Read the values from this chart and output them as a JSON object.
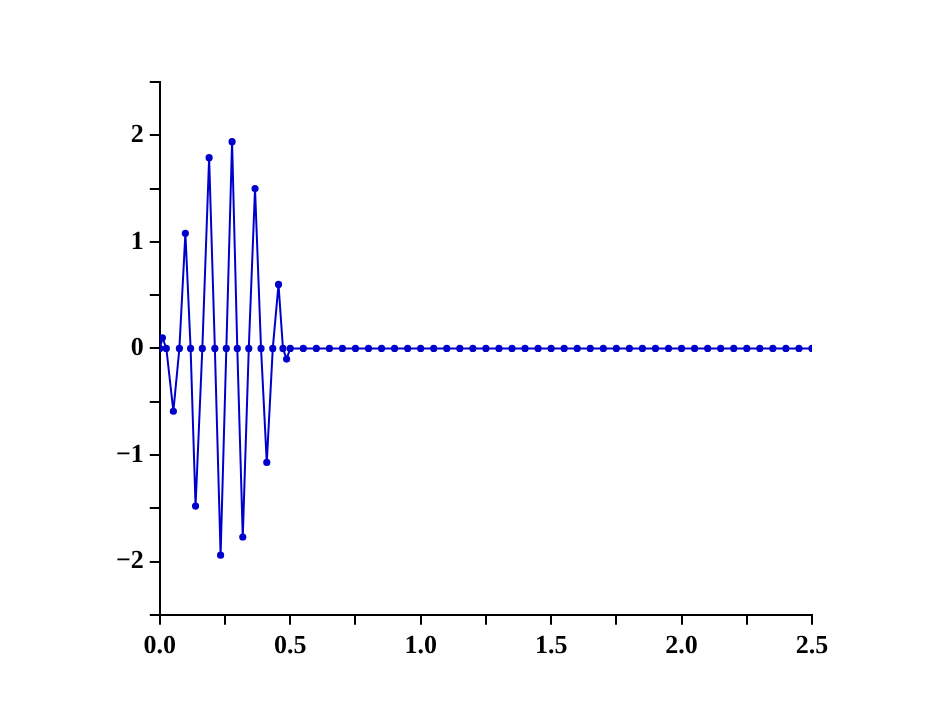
{
  "chart_data": {
    "type": "line",
    "x": [
      0,
      0.01,
      0.025,
      0.052,
      0.075,
      0.098,
      0.118,
      0.137,
      0.163,
      0.189,
      0.211,
      0.233,
      0.255,
      0.277,
      0.297,
      0.318,
      0.341,
      0.365,
      0.388,
      0.41,
      0.433,
      0.455,
      0.472,
      0.486,
      0.5,
      0.55,
      0.6,
      0.65,
      0.7,
      0.75,
      0.8,
      0.85,
      0.9,
      0.95,
      1.0,
      1.05,
      1.1,
      1.15,
      1.2,
      1.25,
      1.3,
      1.35,
      1.4,
      1.45,
      1.5,
      1.55,
      1.6,
      1.65,
      1.7,
      1.75,
      1.8,
      1.85,
      1.9,
      1.95,
      2.0,
      2.05,
      2.1,
      2.15,
      2.2,
      2.25,
      2.3,
      2.35,
      2.4,
      2.45,
      2.5
    ],
    "series": [
      {
        "color": "#0000cc",
        "values": [
          0,
          0.1,
          0,
          -0.59,
          0,
          1.08,
          0,
          -1.48,
          0,
          1.79,
          0,
          -1.94,
          0,
          1.94,
          0,
          -1.77,
          0,
          1.5,
          0,
          -1.07,
          0,
          0.6,
          0,
          -0.1,
          0,
          0,
          0,
          0,
          0,
          0,
          0,
          0,
          0,
          0,
          0,
          0,
          0,
          0,
          0,
          0,
          0,
          0,
          0,
          0,
          0,
          0,
          0,
          0,
          0,
          0,
          0,
          0,
          0,
          0,
          0,
          0,
          0,
          0,
          0,
          0,
          0,
          0,
          0,
          0,
          0
        ]
      }
    ],
    "xlim": [
      0,
      2.5
    ],
    "xticks": [
      {
        "value": 0,
        "label": "0.0"
      },
      {
        "value": 0.25,
        "label": null
      },
      {
        "value": 0.5,
        "label": "0.5"
      },
      {
        "value": 0.75,
        "label": null
      },
      {
        "value": 1,
        "label": "1.0"
      },
      {
        "value": 1.25,
        "label": null
      },
      {
        "value": 1.5,
        "label": "1.5"
      },
      {
        "value": 1.75,
        "label": null
      },
      {
        "value": 2,
        "label": "2.0"
      },
      {
        "value": 2.25,
        "label": null
      },
      {
        "value": 2.5,
        "label": "2.5"
      }
    ],
    "ylim": [
      -2.5,
      2.5
    ],
    "yticks": [
      {
        "value": -2.5,
        "label": null
      },
      -2,
      {
        "value": -1.5,
        "label": null
      },
      -1,
      {
        "value": -0.5,
        "label": null
      },
      0,
      {
        "value": 0.5,
        "label": null
      },
      1,
      {
        "value": 1.5,
        "label": null
      },
      2,
      {
        "value": 2.5,
        "label": null
      }
    ],
    "grid": false,
    "legend": false,
    "marker": "circle",
    "line_style": "solid"
  }
}
